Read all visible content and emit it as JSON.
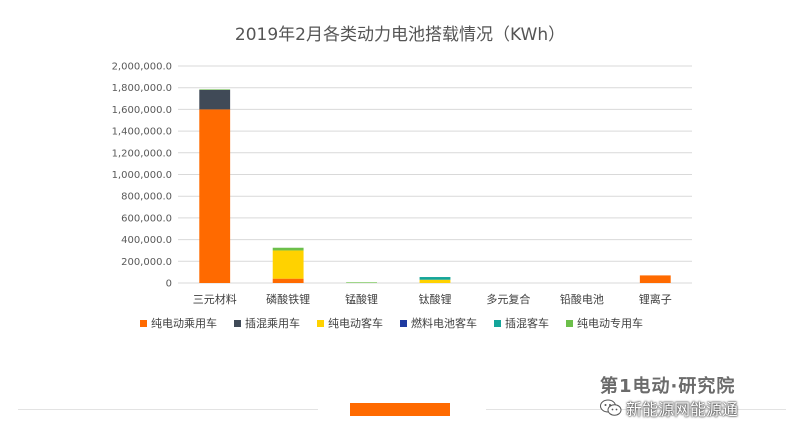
{
  "chart_data": {
    "type": "bar",
    "stacked": true,
    "title": "2019年2月各类动力电池搭载情况（KWh）",
    "categories": [
      "三元材料",
      "磷酸铁锂",
      "锰酸锂",
      "钛酸锂",
      "多元复合",
      "铅酸电池",
      "锂离子"
    ],
    "yticks": [
      "0",
      "200,000.0",
      "400,000.0",
      "600,000.0",
      "800,000.0",
      "1,000,000.0",
      "1,200,000.0",
      "1,400,000.0",
      "1,600,000.0",
      "1,800,000.0",
      "2,000,000.0"
    ],
    "ylim": [
      0,
      2000000
    ],
    "grid": true,
    "legend_position": "bottom",
    "series": [
      {
        "name": "纯电动乘用车",
        "color": "#ff6a00",
        "values": [
          1600000,
          40000,
          0,
          0,
          0,
          0,
          70000
        ]
      },
      {
        "name": "插混乘用车",
        "color": "#404a57",
        "values": [
          180000,
          0,
          0,
          0,
          0,
          0,
          0
        ]
      },
      {
        "name": "纯电动客车",
        "color": "#ffd200",
        "values": [
          0,
          260000,
          0,
          30000,
          0,
          0,
          0
        ]
      },
      {
        "name": "燃料电池客车",
        "color": "#1f3aa0",
        "values": [
          0,
          0,
          0,
          0,
          0,
          0,
          0
        ]
      },
      {
        "name": "插混客车",
        "color": "#14a59a",
        "values": [
          0,
          0,
          0,
          25000,
          0,
          0,
          0
        ]
      },
      {
        "name": "纯电动专用车",
        "color": "#6cbf4a",
        "values": [
          5000,
          25000,
          6000,
          0,
          0,
          0,
          0
        ]
      }
    ]
  },
  "branding": {
    "logo_text": "第1电动·研究院",
    "watermark_text": "新能源网能源通",
    "watermark_icon": "wechat-icon"
  }
}
